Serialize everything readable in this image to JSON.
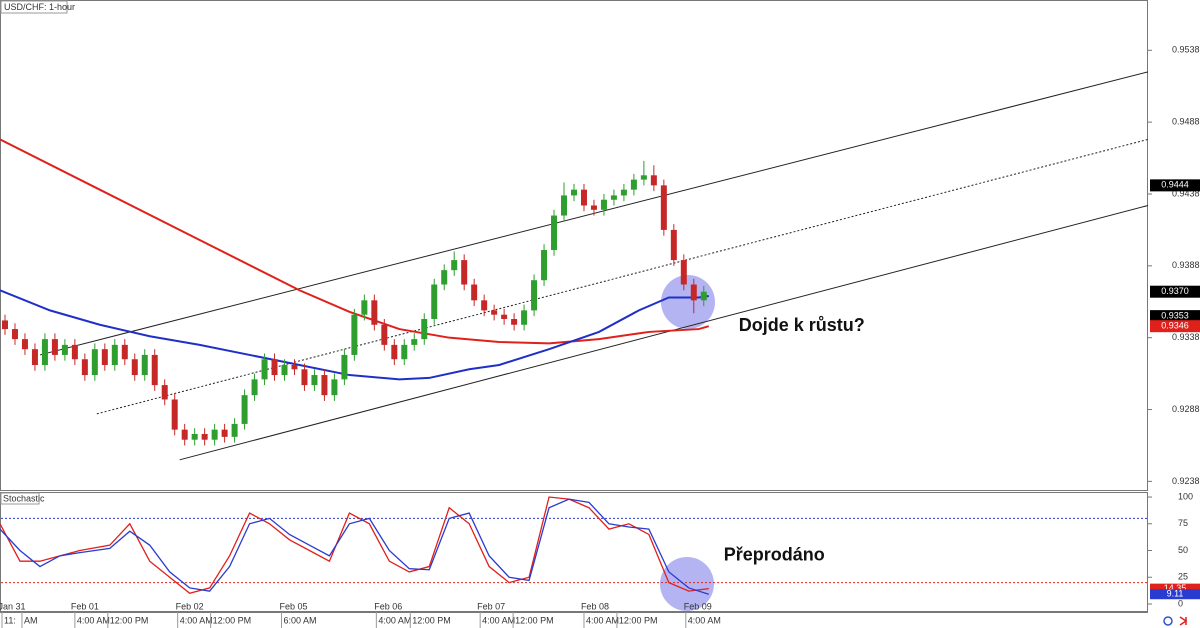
{
  "chart_data": {
    "type": "candlestick",
    "title": "USD/CHF: 1-hour",
    "xlim": [
      0,
      115
    ],
    "ylim": [
      0.9232,
      0.9573
    ],
    "yticks": [
      0.9538,
      0.9488,
      0.9438,
      0.9388,
      0.9338,
      0.9288,
      0.9238
    ],
    "up_color": "#2e9e2e",
    "down_color": "#c62828",
    "candles": [
      [
        0.935,
        0.9354,
        0.934,
        0.9344
      ],
      [
        0.9344,
        0.9348,
        0.9333,
        0.9337
      ],
      [
        0.9337,
        0.9341,
        0.9326,
        0.933
      ],
      [
        0.933,
        0.9334,
        0.9315,
        0.9319
      ],
      [
        0.9319,
        0.9341,
        0.9315,
        0.9337
      ],
      [
        0.9337,
        0.9341,
        0.9322,
        0.9326
      ],
      [
        0.9326,
        0.9337,
        0.9322,
        0.9333
      ],
      [
        0.9333,
        0.9337,
        0.9319,
        0.9323
      ],
      [
        0.9323,
        0.9327,
        0.9308,
        0.9312
      ],
      [
        0.9312,
        0.9334,
        0.9308,
        0.933
      ],
      [
        0.933,
        0.9334,
        0.9315,
        0.9319
      ],
      [
        0.9319,
        0.9337,
        0.9315,
        0.9333
      ],
      [
        0.9333,
        0.9337,
        0.9319,
        0.9323
      ],
      [
        0.9323,
        0.9327,
        0.9308,
        0.9312
      ],
      [
        0.9312,
        0.933,
        0.9308,
        0.9326
      ],
      [
        0.9326,
        0.933,
        0.9301,
        0.9305
      ],
      [
        0.9305,
        0.9309,
        0.9291,
        0.9295
      ],
      [
        0.9295,
        0.9299,
        0.927,
        0.9274
      ],
      [
        0.9274,
        0.9278,
        0.9263,
        0.9267
      ],
      [
        0.9267,
        0.9275,
        0.9263,
        0.9271
      ],
      [
        0.9271,
        0.9275,
        0.9263,
        0.9267
      ],
      [
        0.9267,
        0.9278,
        0.9263,
        0.9274
      ],
      [
        0.9274,
        0.9278,
        0.9265,
        0.9269
      ],
      [
        0.9269,
        0.9282,
        0.9265,
        0.9278
      ],
      [
        0.9278,
        0.9302,
        0.9274,
        0.9298
      ],
      [
        0.9298,
        0.9313,
        0.9294,
        0.9309
      ],
      [
        0.9309,
        0.9327,
        0.9305,
        0.9323
      ],
      [
        0.9323,
        0.9327,
        0.9308,
        0.9312
      ],
      [
        0.9312,
        0.9323,
        0.9308,
        0.9319
      ],
      [
        0.9319,
        0.9323,
        0.9312,
        0.9316
      ],
      [
        0.9316,
        0.932,
        0.9301,
        0.9305
      ],
      [
        0.9305,
        0.9316,
        0.9301,
        0.9312
      ],
      [
        0.9312,
        0.9316,
        0.9294,
        0.9298
      ],
      [
        0.9298,
        0.9313,
        0.9294,
        0.9309
      ],
      [
        0.9309,
        0.933,
        0.9305,
        0.9326
      ],
      [
        0.9326,
        0.9358,
        0.9322,
        0.9354
      ],
      [
        0.9354,
        0.9368,
        0.935,
        0.9364
      ],
      [
        0.9364,
        0.9368,
        0.9343,
        0.9347
      ],
      [
        0.9347,
        0.9351,
        0.9329,
        0.9333
      ],
      [
        0.9333,
        0.9337,
        0.9319,
        0.9323
      ],
      [
        0.9323,
        0.9337,
        0.9319,
        0.9333
      ],
      [
        0.9333,
        0.9341,
        0.9329,
        0.9337
      ],
      [
        0.9337,
        0.9355,
        0.9333,
        0.9351
      ],
      [
        0.9351,
        0.9379,
        0.9347,
        0.9375
      ],
      [
        0.9375,
        0.9389,
        0.9371,
        0.9385
      ],
      [
        0.9385,
        0.9398,
        0.9381,
        0.9392
      ],
      [
        0.9392,
        0.9396,
        0.9371,
        0.9375
      ],
      [
        0.9375,
        0.9379,
        0.936,
        0.9364
      ],
      [
        0.9364,
        0.9368,
        0.9353,
        0.9357
      ],
      [
        0.9357,
        0.9361,
        0.935,
        0.9354
      ],
      [
        0.9354,
        0.9358,
        0.9347,
        0.9351
      ],
      [
        0.9351,
        0.9355,
        0.9343,
        0.9347
      ],
      [
        0.9347,
        0.9361,
        0.9343,
        0.9357
      ],
      [
        0.9357,
        0.9382,
        0.9353,
        0.9378
      ],
      [
        0.9378,
        0.9403,
        0.9374,
        0.9399
      ],
      [
        0.9399,
        0.9427,
        0.9395,
        0.9423
      ],
      [
        0.9423,
        0.9446,
        0.9419,
        0.9437
      ],
      [
        0.9437,
        0.9445,
        0.9433,
        0.9441
      ],
      [
        0.9441,
        0.9445,
        0.9426,
        0.943
      ],
      [
        0.943,
        0.9434,
        0.9423,
        0.9427
      ],
      [
        0.9427,
        0.9438,
        0.9423,
        0.9434
      ],
      [
        0.9434,
        0.9441,
        0.943,
        0.9437
      ],
      [
        0.9437,
        0.9445,
        0.9433,
        0.9441
      ],
      [
        0.9441,
        0.9452,
        0.9437,
        0.9448
      ],
      [
        0.9448,
        0.9461,
        0.9444,
        0.9451
      ],
      [
        0.9451,
        0.9458,
        0.944,
        0.9444
      ],
      [
        0.9444,
        0.9448,
        0.9409,
        0.9413
      ],
      [
        0.9413,
        0.9417,
        0.9388,
        0.9392
      ],
      [
        0.9392,
        0.9396,
        0.9371,
        0.9375
      ],
      [
        0.9375,
        0.9379,
        0.9355,
        0.9364
      ],
      [
        0.9364,
        0.9374,
        0.936,
        0.937
      ]
    ],
    "moving_averages": [
      {
        "color": "#e0201b",
        "x": [
          0,
          10,
          20,
          30,
          35,
          40,
          45,
          50,
          55,
          60,
          65,
          70,
          71
        ],
        "values": [
          0.9476,
          0.9441,
          0.9406,
          0.9371,
          0.9356,
          0.9344,
          0.9338,
          0.9335,
          0.9334,
          0.9337,
          0.9342,
          0.9344,
          0.9346
        ]
      },
      {
        "color": "#1f2fc8",
        "x": [
          0,
          5,
          10,
          15,
          20,
          25,
          30,
          35,
          40,
          43,
          47,
          50,
          55,
          60,
          64,
          67,
          70,
          71
        ],
        "values": [
          0.9371,
          0.9357,
          0.9347,
          0.9339,
          0.9333,
          0.9326,
          0.9319,
          0.9312,
          0.9309,
          0.931,
          0.9316,
          0.9319,
          0.933,
          0.9342,
          0.9357,
          0.9366,
          0.9366,
          0.9367
        ]
      }
    ],
    "channel_lines": [
      {
        "x": [
          4,
          115
        ],
        "values": [
          0.9326,
          0.9523
        ],
        "dashed": false
      },
      {
        "x": [
          9.7,
          115
        ],
        "values": [
          0.9285,
          0.9476
        ],
        "dashed": true
      },
      {
        "x": [
          18,
          115
        ],
        "values": [
          0.9253,
          0.943
        ],
        "dashed": false
      }
    ],
    "price_labels": [
      {
        "value": 0.9444,
        "color": "#000000"
      },
      {
        "value": 0.937,
        "label": "0.9370",
        "color": "#000000"
      },
      {
        "value": 0.9353,
        "color": "#000000"
      },
      {
        "value": 0.9346,
        "color": "#e0201b"
      }
    ],
    "annotations": [
      {
        "text": "Dojde k růstu?",
        "x": 74,
        "y": 0.9346
      }
    ],
    "stochastic": {
      "title": "Stochastic",
      "ylim": [
        -7.5,
        104.7
      ],
      "yticks": [
        100,
        75,
        50,
        25,
        0
      ],
      "levels": [
        {
          "value": 80,
          "color": "#2a3bd0"
        },
        {
          "value": 20,
          "color": "#e0201b"
        }
      ],
      "x": [
        0,
        2,
        4,
        6,
        8,
        11,
        13,
        15,
        17,
        19,
        21,
        23,
        25,
        27,
        29,
        31,
        33,
        35,
        37,
        39,
        41,
        43,
        45,
        47,
        49,
        51,
        53,
        55,
        57,
        59,
        61,
        63,
        65,
        67,
        69,
        71
      ],
      "series": [
        {
          "color": "#e0201b",
          "values": [
            75,
            40,
            40,
            45,
            50,
            55,
            75,
            40,
            25,
            10,
            15,
            45,
            85,
            75,
            60,
            50,
            40,
            85,
            75,
            40,
            30,
            35,
            90,
            75,
            35,
            20,
            25,
            100,
            98,
            90,
            70,
            75,
            65,
            20,
            12,
            14.35
          ]
        },
        {
          "color": "#2a3bd0",
          "values": [
            70,
            50,
            35,
            45,
            48,
            52,
            68,
            55,
            30,
            15,
            12,
            35,
            75,
            80,
            65,
            55,
            45,
            75,
            80,
            50,
            33,
            32,
            80,
            85,
            45,
            25,
            22,
            90,
            98,
            95,
            75,
            72,
            70,
            30,
            15,
            9.11
          ]
        }
      ],
      "value_labels": [
        {
          "value": 14.35,
          "color": "#e0201b"
        },
        {
          "value": 9.11,
          "color": "#2a3bd0"
        }
      ],
      "annotation": {
        "text": "Přeprodáno",
        "x": 72.5,
        "y": 45
      }
    },
    "date_ticks": [
      {
        "value": 1.2,
        "label": "Jan 31"
      },
      {
        "value": 8.5,
        "label": "Feb 01"
      },
      {
        "value": 19,
        "label": "Feb 02"
      },
      {
        "value": 29.4,
        "label": "Feb 05"
      },
      {
        "value": 38.9,
        "label": "Feb 06"
      },
      {
        "value": 49.2,
        "label": "Feb 07"
      },
      {
        "value": 59.6,
        "label": "Feb 08"
      },
      {
        "value": 69.9,
        "label": "Feb 09"
      }
    ],
    "time_ticks": [
      {
        "value": 0.2,
        "label": "11:"
      },
      {
        "value": 2.2,
        "label": "AM"
      },
      {
        "value": 7.5,
        "label": "4:00 AM"
      },
      {
        "value": 10.8,
        "label": "12:00 PM"
      },
      {
        "value": 17.8,
        "label": "4:00 AM"
      },
      {
        "value": 21.1,
        "label": "12:00 PM"
      },
      {
        "value": 28.2,
        "label": "6:00 AM"
      },
      {
        "value": 37.7,
        "label": "4:00 AM"
      },
      {
        "value": 41.1,
        "label": "12:00 PM"
      },
      {
        "value": 48.1,
        "label": "4:00 AM"
      },
      {
        "value": 51.4,
        "label": "12:00 PM"
      },
      {
        "value": 58.5,
        "label": "4:00 AM"
      },
      {
        "value": 61.8,
        "label": "12:00 PM"
      },
      {
        "value": 68.7,
        "label": "4:00 AM"
      }
    ]
  }
}
